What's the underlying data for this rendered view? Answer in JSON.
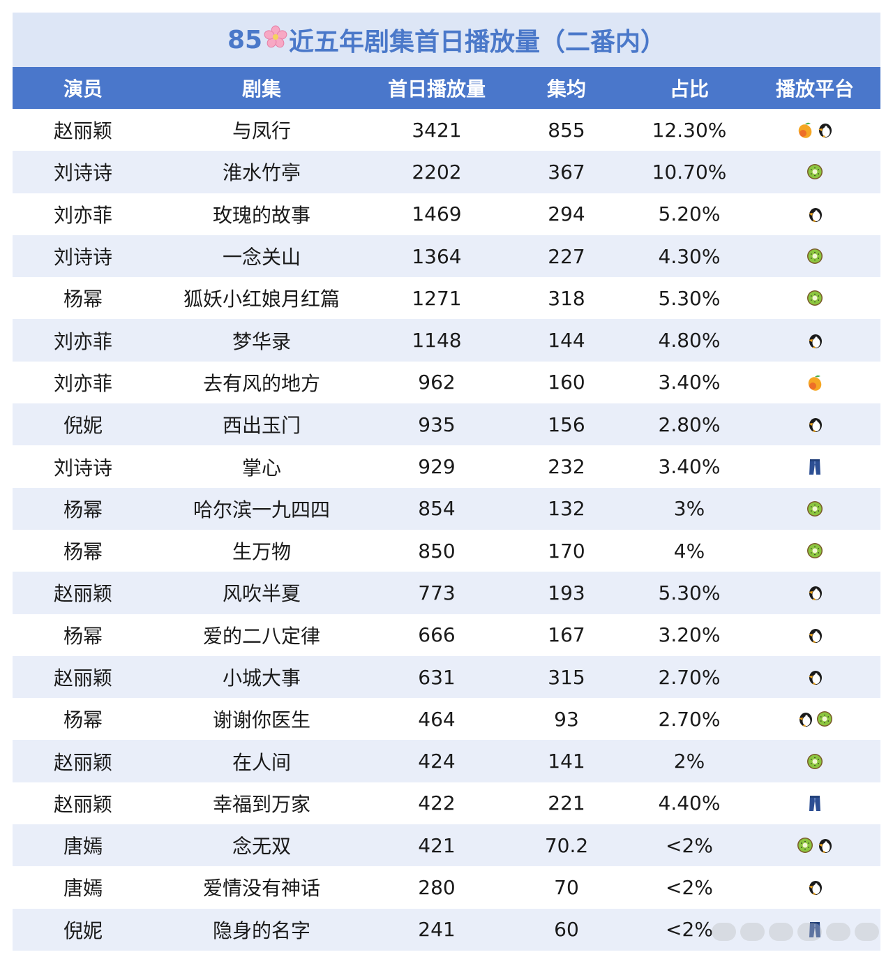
{
  "title": {
    "prefix": "85",
    "icon": "cherry-blossom-icon",
    "text": "近五年剧集首日播放量（二番内）"
  },
  "columns": [
    "演员",
    "剧集",
    "首日播放量",
    "集均",
    "占比",
    "播放平台"
  ],
  "colors": {
    "header_bg": "#4a77cb",
    "title_bg": "#dde6f6",
    "title_text": "#4a78c9",
    "row_alt_bg": "#e9eef9"
  },
  "platform_icons": {
    "mango": "mango-icon",
    "penguin": "penguin-icon",
    "kiwi": "kiwi-icon",
    "jeans": "jeans-icon"
  },
  "rows": [
    {
      "actor": "赵丽颖",
      "drama": "与凤行",
      "first_day": "3421",
      "avg": "855",
      "share": "12.30%",
      "platforms": [
        "mango",
        "penguin"
      ]
    },
    {
      "actor": "刘诗诗",
      "drama": "淮水竹亭",
      "first_day": "2202",
      "avg": "367",
      "share": "10.70%",
      "platforms": [
        "kiwi"
      ]
    },
    {
      "actor": "刘亦菲",
      "drama": "玫瑰的故事",
      "first_day": "1469",
      "avg": "294",
      "share": "5.20%",
      "platforms": [
        "penguin"
      ]
    },
    {
      "actor": "刘诗诗",
      "drama": "一念关山",
      "first_day": "1364",
      "avg": "227",
      "share": "4.30%",
      "platforms": [
        "kiwi"
      ]
    },
    {
      "actor": "杨幂",
      "drama": "狐妖小红娘月红篇",
      "first_day": "1271",
      "avg": "318",
      "share": "5.30%",
      "platforms": [
        "kiwi"
      ]
    },
    {
      "actor": "刘亦菲",
      "drama": "梦华录",
      "first_day": "1148",
      "avg": "144",
      "share": "4.80%",
      "platforms": [
        "penguin"
      ]
    },
    {
      "actor": "刘亦菲",
      "drama": "去有风的地方",
      "first_day": "962",
      "avg": "160",
      "share": "3.40%",
      "platforms": [
        "mango"
      ]
    },
    {
      "actor": "倪妮",
      "drama": "西出玉门",
      "first_day": "935",
      "avg": "156",
      "share": "2.80%",
      "platforms": [
        "penguin"
      ]
    },
    {
      "actor": "刘诗诗",
      "drama": "掌心",
      "first_day": "929",
      "avg": "232",
      "share": "3.40%",
      "platforms": [
        "jeans"
      ]
    },
    {
      "actor": "杨幂",
      "drama": "哈尔滨一九四四",
      "first_day": "854",
      "avg": "132",
      "share": "3%",
      "platforms": [
        "kiwi"
      ]
    },
    {
      "actor": "杨幂",
      "drama": "生万物",
      "first_day": "850",
      "avg": "170",
      "share": "4%",
      "platforms": [
        "kiwi"
      ]
    },
    {
      "actor": "赵丽颖",
      "drama": "风吹半夏",
      "first_day": "773",
      "avg": "193",
      "share": "5.30%",
      "platforms": [
        "penguin"
      ]
    },
    {
      "actor": "杨幂",
      "drama": "爱的二八定律",
      "first_day": "666",
      "avg": "167",
      "share": "3.20%",
      "platforms": [
        "penguin"
      ]
    },
    {
      "actor": "赵丽颖",
      "drama": "小城大事",
      "first_day": "631",
      "avg": "315",
      "share": "2.70%",
      "platforms": [
        "penguin"
      ]
    },
    {
      "actor": "杨幂",
      "drama": "谢谢你医生",
      "first_day": "464",
      "avg": "93",
      "share": "2.70%",
      "platforms": [
        "penguin",
        "kiwi"
      ]
    },
    {
      "actor": "赵丽颖",
      "drama": "在人间",
      "first_day": "424",
      "avg": "141",
      "share": "2%",
      "platforms": [
        "kiwi"
      ]
    },
    {
      "actor": "赵丽颖",
      "drama": "幸福到万家",
      "first_day": "422",
      "avg": "221",
      "share": "4.40%",
      "platforms": [
        "jeans"
      ]
    },
    {
      "actor": "唐嫣",
      "drama": "念无双",
      "first_day": "421",
      "avg": "70.2",
      "share": "<2%",
      "platforms": [
        "kiwi",
        "penguin"
      ]
    },
    {
      "actor": "唐嫣",
      "drama": "爱情没有神话",
      "first_day": "280",
      "avg": "70",
      "share": "<2%",
      "platforms": [
        "penguin"
      ]
    },
    {
      "actor": "倪妮",
      "drama": "隐身的名字",
      "first_day": "241",
      "avg": "60",
      "share": "<2%",
      "platforms": [
        "jeans"
      ]
    }
  ]
}
